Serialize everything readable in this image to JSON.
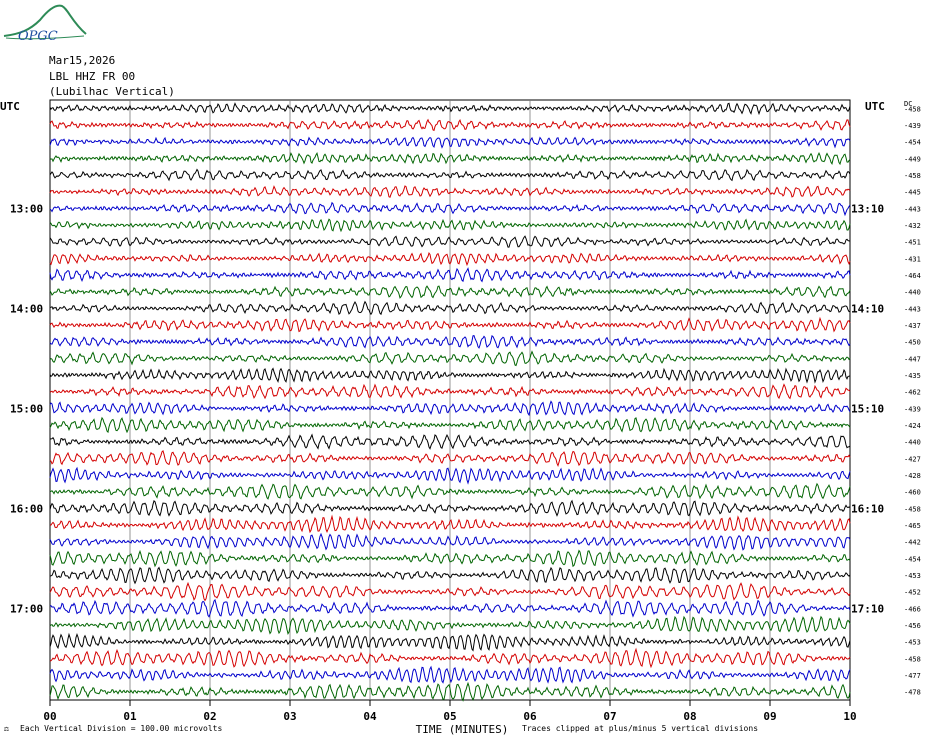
{
  "header": {
    "logo_text": "OPGC",
    "date": "Mar15,2026",
    "station": "LBL HHZ FR 00",
    "station_name": "(Lubilhac Vertical)"
  },
  "footer": {
    "vertical_division": "Each Vertical Division =  100.00 microvolts",
    "clip_note": "Traces clipped at plus/minus 5 vertical divisions"
  },
  "chart_data": {
    "type": "line",
    "title": "",
    "left_axis_label": "UTC",
    "right_axis_label": "UTC",
    "dc_header": "DC",
    "xlabel": "TIME (MINUTES)",
    "x_ticks": [
      "00",
      "01",
      "02",
      "03",
      "04",
      "05",
      "06",
      "07",
      "08",
      "09",
      "10"
    ],
    "xlim": [
      0,
      10
    ],
    "left_hour_labels": [
      {
        "label": "13:00",
        "row": 6
      },
      {
        "label": "14:00",
        "row": 12
      },
      {
        "label": "15:00",
        "row": 18
      },
      {
        "label": "16:00",
        "row": 24
      },
      {
        "label": "17:00",
        "row": 30
      }
    ],
    "right_hour_labels": [
      {
        "label": "13:10",
        "row": 6
      },
      {
        "label": "14:10",
        "row": 12
      },
      {
        "label": "15:10",
        "row": 18
      },
      {
        "label": "16:10",
        "row": 24
      },
      {
        "label": "17:10",
        "row": 30
      }
    ],
    "trace_colors": [
      "#000000",
      "#d40000",
      "#0000cc",
      "#006400"
    ],
    "trace_count": 36,
    "minutes_per_trace": 10,
    "dc_offsets": [
      -458,
      -439,
      -454,
      -449,
      -458,
      -445,
      -443,
      -432,
      -451,
      -431,
      -464,
      -440,
      -443,
      -437,
      -450,
      -447,
      -435,
      -462,
      -439,
      -424,
      -440,
      -427,
      -428,
      -460,
      -458,
      -465,
      -442,
      -454,
      -453,
      -452,
      -466,
      -456,
      -453,
      -458,
      -477,
      -478
    ],
    "grid": true
  }
}
